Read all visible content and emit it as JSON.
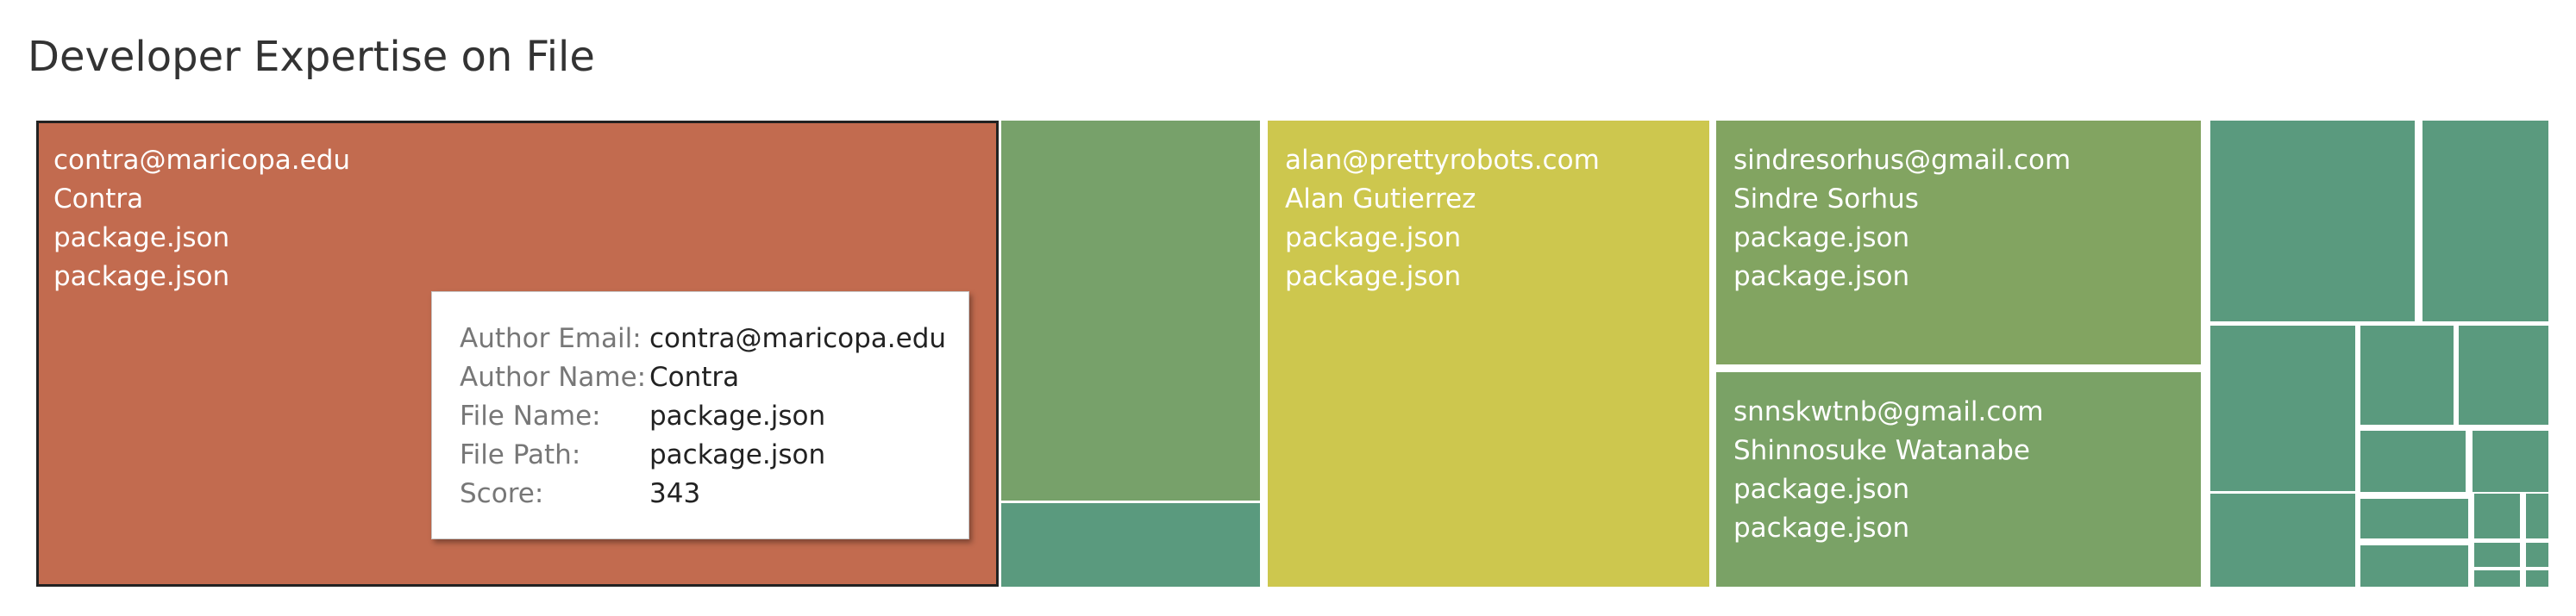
{
  "title": "Developer Expertise on File",
  "tooltip": {
    "rows": [
      {
        "label": "Author Email:",
        "value": "contra@maricopa.edu"
      },
      {
        "label": "Author Name:",
        "value": "Contra"
      },
      {
        "label": "File Name:",
        "value": "package.json"
      },
      {
        "label": "File Path:",
        "value": "package.json"
      },
      {
        "label": "Score:",
        "value": "343"
      }
    ]
  },
  "chart_data": {
    "type": "treemap",
    "title": "Developer Expertise on File",
    "size_field": "Score",
    "color_field": "Score",
    "colors": {
      "low": "#5a9a7e",
      "mid": "#cdc74e",
      "high": "#c26b4f"
    },
    "items": [
      {
        "email": "contra@maricopa.edu",
        "name": "Contra",
        "file_name": "package.json",
        "file_path": "package.json",
        "score": 343,
        "color": "#c26b4f",
        "labeled": true,
        "selected": true
      },
      {
        "email": "alan@prettyrobots.com",
        "name": "Alan Gutierrez",
        "file_name": "package.json",
        "file_path": "package.json",
        "color": "#cdc74e",
        "labeled": true
      },
      {
        "email": "sindresorhus@gmail.com",
        "name": "Sindre Sorhus",
        "file_name": "package.json",
        "file_path": "package.json",
        "color": "#82a461",
        "labeled": true
      },
      {
        "email": "snnskwtnb@gmail.com",
        "name": "Shinnosuke Watanabe",
        "file_name": "package.json",
        "file_path": "package.json",
        "color": "#7aa266",
        "labeled": true
      },
      {
        "color": "#77a16a",
        "labeled": false
      },
      {
        "color": "#5a9a7e",
        "labeled": false
      },
      {
        "color": "#5a9a7e",
        "labeled": false
      },
      {
        "color": "#5a9a7e",
        "labeled": false
      },
      {
        "color": "#5a9a7e",
        "labeled": false
      },
      {
        "color": "#5a9a7e",
        "labeled": false
      },
      {
        "color": "#5a9a7e",
        "labeled": false
      },
      {
        "color": "#5a9a7e",
        "labeled": false
      },
      {
        "color": "#5a9a7e",
        "labeled": false
      },
      {
        "color": "#5a9a7e",
        "labeled": false
      },
      {
        "color": "#5a9a7e",
        "labeled": false
      },
      {
        "color": "#5a9a7e",
        "labeled": false
      },
      {
        "color": "#5a9a7e",
        "labeled": false
      },
      {
        "color": "#5a9a7e",
        "labeled": false
      },
      {
        "color": "#5a9a7e",
        "labeled": false
      },
      {
        "color": "#5a9a7e",
        "labeled": false
      },
      {
        "color": "#5a9a7e",
        "labeled": false
      },
      {
        "color": "#5a9a7e",
        "labeled": false
      },
      {
        "color": "#5a9a7e",
        "labeled": false
      }
    ]
  }
}
